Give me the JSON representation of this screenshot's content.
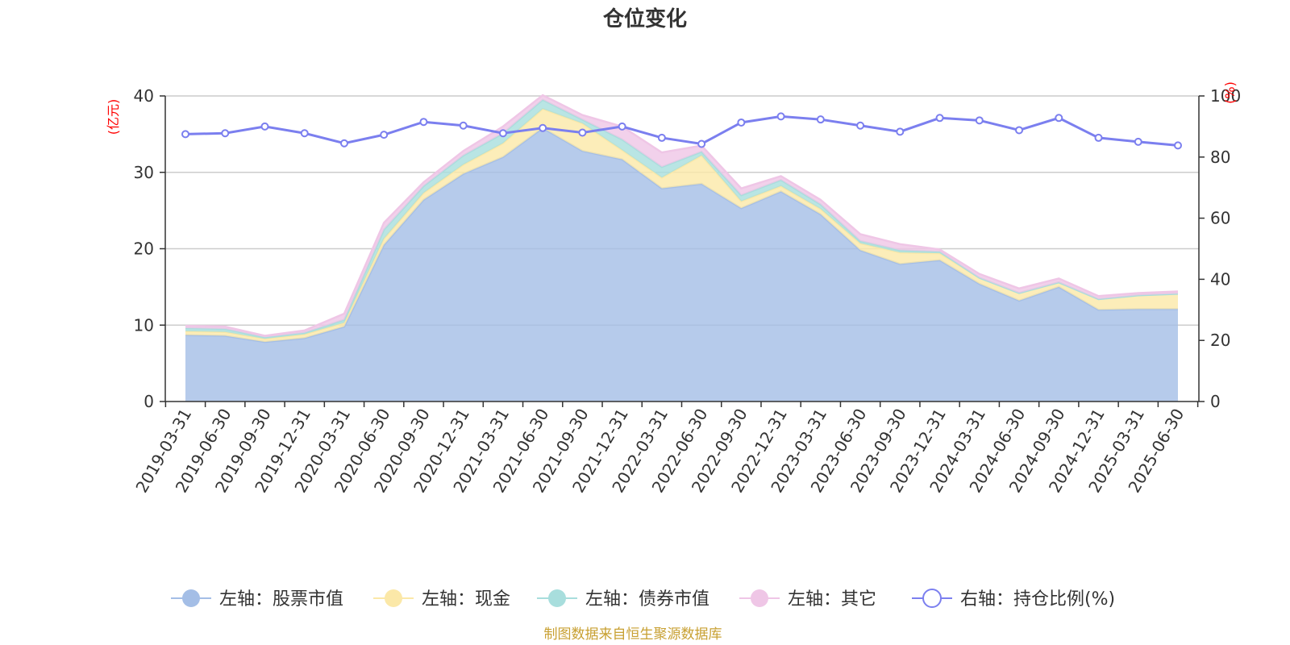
{
  "chart_data": {
    "type": "area",
    "title": "仓位变化",
    "source": "制图数据来自恒生聚源数据库",
    "left_axis": {
      "unit": "(亿元)",
      "ticks": [
        "0",
        "10",
        "20",
        "30",
        "40"
      ],
      "range": [
        0,
        40
      ]
    },
    "right_axis": {
      "unit": "(%)",
      "ticks": [
        "0",
        "20",
        "40",
        "60",
        "80",
        "100"
      ],
      "range": [
        0,
        100
      ]
    },
    "categories": [
      "2019-03-31",
      "2019-06-30",
      "2019-09-30",
      "2019-12-31",
      "2020-03-31",
      "2020-06-30",
      "2020-09-30",
      "2020-12-31",
      "2021-03-31",
      "2021-06-30",
      "2021-09-30",
      "2021-12-31",
      "2022-03-31",
      "2022-06-30",
      "2022-09-30",
      "2022-12-31",
      "2023-03-31",
      "2023-06-30",
      "2023-09-30",
      "2023-12-31",
      "2024-03-31",
      "2024-06-30",
      "2024-09-30",
      "2024-12-31",
      "2025-03-31",
      "2025-06-30"
    ],
    "series": [
      {
        "name": "左轴：股票市值",
        "axis": "left",
        "stack": true,
        "color": "#a4bee6",
        "values": [
          8.7,
          8.6,
          7.8,
          8.3,
          9.8,
          20.5,
          26.4,
          29.8,
          32.0,
          35.8,
          32.8,
          31.7,
          27.9,
          28.5,
          25.3,
          27.5,
          24.5,
          19.8,
          18.0,
          18.5,
          15.4,
          13.2,
          15.0,
          12.0,
          12.1,
          12.1
        ]
      },
      {
        "name": "左轴：现金",
        "axis": "left",
        "stack": true,
        "color": "#fbe8a8",
        "values": [
          0.5,
          0.5,
          0.4,
          0.5,
          0.5,
          0.8,
          0.9,
          1.2,
          1.8,
          2.5,
          3.6,
          1.2,
          1.4,
          3.7,
          0.9,
          0.7,
          0.7,
          0.9,
          1.5,
          0.9,
          0.8,
          1.0,
          0.6,
          1.4,
          1.8,
          2.0
        ]
      },
      {
        "name": "左轴：债券市值",
        "axis": "left",
        "stack": true,
        "color": "#a8dedd",
        "values": [
          0.4,
          0.4,
          0.2,
          0.2,
          0.4,
          1.2,
          0.9,
          1.2,
          1.3,
          1.2,
          0.5,
          1.4,
          1.4,
          0.5,
          0.8,
          0.8,
          0.6,
          0.3,
          0.3,
          0.2,
          0.0,
          0.0,
          0.0,
          0.0,
          0.0,
          0.0
        ]
      },
      {
        "name": "左轴：其它",
        "axis": "left",
        "stack": true,
        "color": "#efc6e6",
        "values": [
          0.3,
          0.3,
          0.2,
          0.3,
          0.8,
          0.9,
          0.5,
          0.6,
          0.9,
          0.6,
          0.6,
          1.7,
          1.9,
          0.8,
          0.9,
          0.5,
          0.6,
          0.9,
          0.8,
          0.3,
          0.5,
          0.6,
          0.5,
          0.4,
          0.3,
          0.3
        ]
      },
      {
        "name": "右轴：持仓比例(%)",
        "axis": "right",
        "stack": false,
        "color": "#7b7fef",
        "values": [
          87.5,
          87.8,
          90.0,
          87.8,
          84.5,
          87.3,
          91.5,
          90.3,
          87.8,
          89.5,
          88.0,
          90.0,
          86.3,
          84.3,
          91.3,
          93.3,
          92.3,
          90.3,
          88.3,
          92.8,
          92.0,
          88.8,
          92.8,
          86.3,
          85.0,
          83.8
        ]
      }
    ]
  }
}
